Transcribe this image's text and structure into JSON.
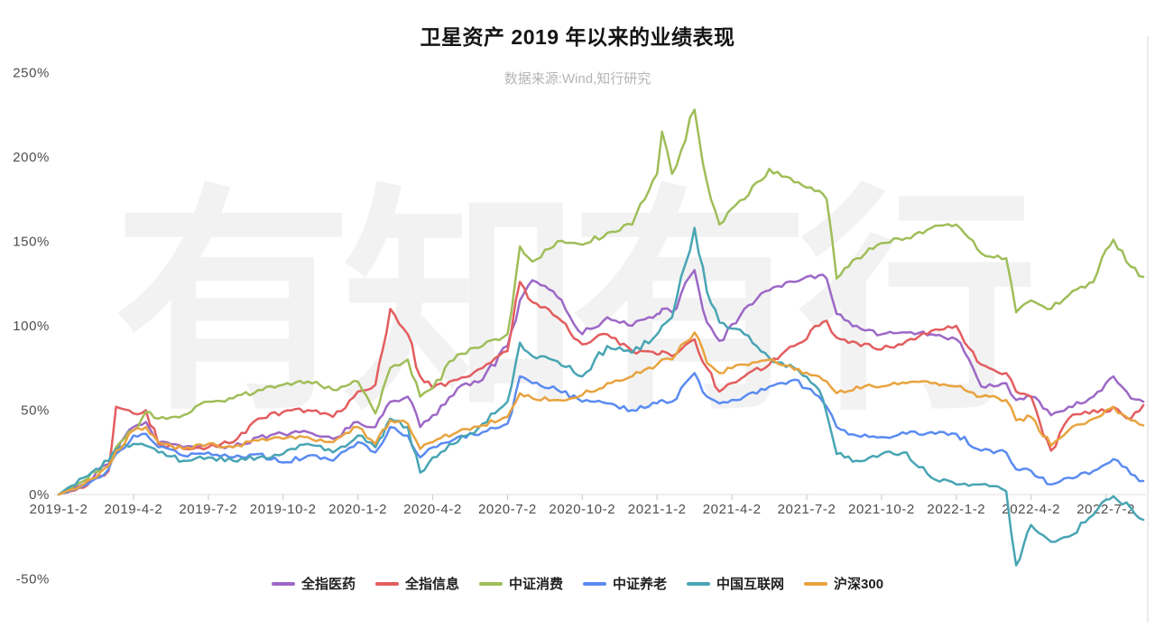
{
  "chart_data": {
    "type": "line",
    "title": "卫星资产 2019 年以来的业绩表现",
    "subtitle": "数据来源:Wind,知行研究",
    "watermark": "有知有行",
    "x_unit": "months since 2019-01-02",
    "x_range": [
      0,
      43.7
    ],
    "ylim": [
      -50,
      250
    ],
    "grid": "baseline-only",
    "legend_position": "bottom-center",
    "jitter_pct": 2.2,
    "y_ticks": [
      {
        "value": 250,
        "label": "250%"
      },
      {
        "value": 200,
        "label": "200%"
      },
      {
        "value": 150,
        "label": "150%"
      },
      {
        "value": 100,
        "label": "100%"
      },
      {
        "value": 50,
        "label": "50%"
      },
      {
        "value": 0,
        "label": "0%"
      },
      {
        "value": -50,
        "label": "-50%"
      }
    ],
    "x_ticks": [
      {
        "pos": 0,
        "label": "2019-1-2"
      },
      {
        "pos": 3,
        "label": "2019-4-2"
      },
      {
        "pos": 6,
        "label": "2019-7-2"
      },
      {
        "pos": 9,
        "label": "2019-10-2"
      },
      {
        "pos": 12,
        "label": "2020-1-2"
      },
      {
        "pos": 15,
        "label": "2020-4-2"
      },
      {
        "pos": 18,
        "label": "2020-7-2"
      },
      {
        "pos": 21,
        "label": "2020-10-2"
      },
      {
        "pos": 24,
        "label": "2021-1-2"
      },
      {
        "pos": 27,
        "label": "2021-4-2"
      },
      {
        "pos": 30,
        "label": "2021-7-2"
      },
      {
        "pos": 33,
        "label": "2021-10-2"
      },
      {
        "pos": 36,
        "label": "2022-1-2"
      },
      {
        "pos": 39,
        "label": "2022-4-2"
      },
      {
        "pos": 42,
        "label": "2022-7-2"
      }
    ],
    "x": [
      0,
      1,
      2,
      2.3,
      3,
      3.5,
      4,
      5,
      6,
      7,
      8,
      9,
      10,
      11,
      12,
      12.7,
      13.3,
      14,
      14.5,
      15,
      16,
      17,
      18,
      18.5,
      19,
      20,
      21,
      22,
      23,
      24,
      24.2,
      24.6,
      25.5,
      26,
      26.5,
      27.5,
      28.5,
      29.5,
      30.5,
      30.8,
      31.2,
      32,
      33,
      34,
      35,
      36,
      37,
      38,
      38.4,
      39,
      39.8,
      40.5,
      41.5,
      42,
      42.3,
      43,
      43.5
    ],
    "series": [
      {
        "key": "pharma",
        "name": "全指医药",
        "color": "#9d68c6",
        "values": [
          0,
          6,
          18,
          25,
          40,
          43,
          31,
          28,
          30,
          28,
          34,
          36,
          37,
          33,
          43,
          40,
          55,
          58,
          40,
          47,
          63,
          68,
          88,
          115,
          127,
          117,
          95,
          105,
          100,
          107,
          110,
          108,
          133,
          102,
          91,
          110,
          121,
          126,
          130,
          128,
          107,
          100,
          95,
          96,
          95,
          92,
          64,
          66,
          56,
          58,
          47,
          52,
          58,
          66,
          70,
          57,
          55
        ]
      },
      {
        "key": "info-tech",
        "name": "全指信息",
        "color": "#e35d5f",
        "values": [
          0,
          4,
          14,
          52,
          48,
          50,
          30,
          27,
          28,
          31,
          45,
          49,
          50,
          46,
          61,
          65,
          110,
          95,
          70,
          63,
          68,
          75,
          85,
          126,
          114,
          105,
          89,
          95,
          85,
          83,
          85,
          82,
          92,
          75,
          61,
          70,
          77,
          88,
          100,
          103,
          93,
          90,
          86,
          91,
          97,
          100,
          77,
          72,
          61,
          58,
          26,
          45,
          50,
          49,
          52,
          45,
          53
        ]
      },
      {
        "key": "consumer",
        "name": "中证消费",
        "color": "#9fbe58",
        "values": [
          0,
          8,
          20,
          28,
          38,
          49,
          45,
          47,
          55,
          57,
          62,
          65,
          67,
          62,
          67,
          48,
          75,
          80,
          58,
          63,
          83,
          88,
          95,
          147,
          138,
          150,
          148,
          155,
          160,
          190,
          215,
          190,
          228,
          185,
          160,
          175,
          193,
          185,
          180,
          175,
          128,
          140,
          149,
          152,
          158,
          160,
          143,
          140,
          108,
          115,
          110,
          118,
          126,
          145,
          151,
          135,
          129
        ]
      },
      {
        "key": "elderly-care",
        "name": "中证养老",
        "color": "#5b8bf2",
        "values": [
          0,
          5,
          15,
          24,
          35,
          36,
          28,
          23,
          25,
          22,
          24,
          19,
          23,
          20,
          31,
          25,
          40,
          35,
          22,
          28,
          34,
          37,
          42,
          70,
          66,
          62,
          55,
          54,
          50,
          54,
          56,
          55,
          72,
          58,
          54,
          58,
          64,
          68,
          58,
          52,
          40,
          35,
          34,
          36,
          37,
          36,
          26,
          25,
          15,
          14,
          6,
          10,
          14,
          18,
          21,
          12,
          8
        ]
      },
      {
        "key": "china-internet",
        "name": "中国互联网",
        "color": "#48a5b4",
        "values": [
          0,
          10,
          20,
          27,
          30,
          29,
          25,
          20,
          22,
          20,
          22,
          24,
          30,
          25,
          35,
          28,
          45,
          40,
          13,
          22,
          31,
          42,
          55,
          90,
          82,
          79,
          70,
          88,
          84,
          95,
          100,
          105,
          158,
          120,
          102,
          95,
          81,
          75,
          62,
          48,
          24,
          20,
          24,
          25,
          10,
          6,
          6,
          2,
          -42,
          -18,
          -28,
          -25,
          -12,
          -3,
          -1,
          -8,
          -15
        ]
      },
      {
        "key": "csi300",
        "name": "沪深300",
        "color": "#e8a33e",
        "values": [
          0,
          6,
          17,
          26,
          38,
          40,
          31,
          27,
          30,
          28,
          32,
          33,
          34,
          31,
          40,
          30,
          44,
          42,
          27,
          31,
          37,
          41,
          46,
          60,
          57,
          56,
          59,
          66,
          70,
          77,
          80,
          80,
          96,
          78,
          72,
          77,
          80,
          74,
          70,
          67,
          60,
          64,
          64,
          66,
          66,
          64,
          58,
          56,
          44,
          46,
          29,
          38,
          45,
          50,
          52,
          44,
          41
        ]
      }
    ]
  }
}
